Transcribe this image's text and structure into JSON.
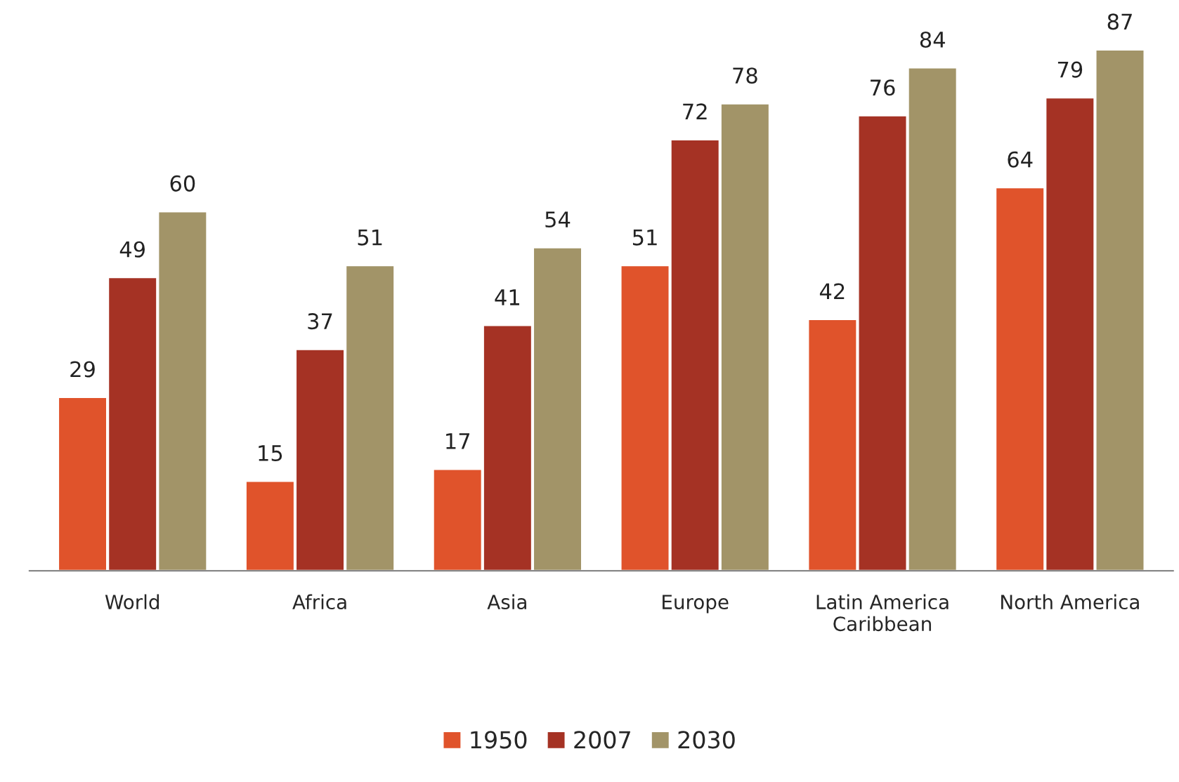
{
  "chart_data": {
    "type": "bar",
    "categories": [
      "World",
      "Africa",
      "Asia",
      "Europe",
      "Latin America\nCaribbean",
      "North America"
    ],
    "series": [
      {
        "name": "1950",
        "color": "#e0532b",
        "values": [
          29,
          15,
          17,
          51,
          42,
          64
        ]
      },
      {
        "name": "2007",
        "color": "#a53224",
        "values": [
          49,
          37,
          41,
          72,
          76,
          79
        ]
      },
      {
        "name": "2030",
        "color": "#a29468",
        "values": [
          60,
          51,
          54,
          78,
          84,
          87
        ]
      }
    ],
    "data_labels": true,
    "legend": "bottom",
    "grid": false
  }
}
